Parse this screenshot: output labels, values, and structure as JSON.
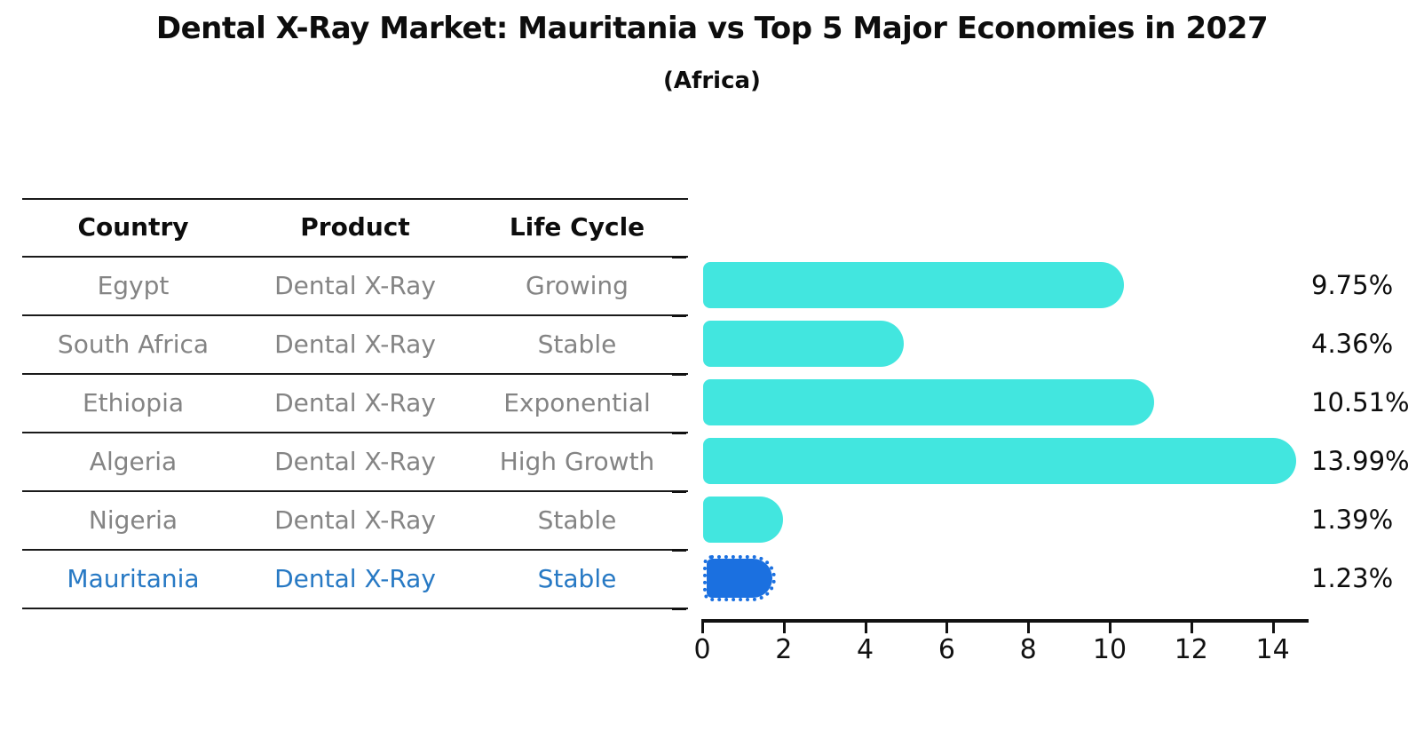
{
  "title": "Dental X-Ray Market: Mauritania vs Top 5 Major Economies in 2027",
  "subtitle": "(Africa)",
  "table": {
    "headers": [
      "Country",
      "Product",
      "Life Cycle"
    ],
    "rows": [
      {
        "country": "Egypt",
        "product": "Dental X-Ray",
        "life_cycle": "Growing",
        "highlight": false
      },
      {
        "country": "South Africa",
        "product": "Dental X-Ray",
        "life_cycle": "Stable",
        "highlight": false
      },
      {
        "country": "Ethiopia",
        "product": "Dental X-Ray",
        "life_cycle": "Exponential",
        "highlight": false
      },
      {
        "country": "Algeria",
        "product": "Dental X-Ray",
        "life_cycle": "High Growth",
        "highlight": false
      },
      {
        "country": "Nigeria",
        "product": "Dental X-Ray",
        "life_cycle": "Stable",
        "highlight": false
      },
      {
        "country": "Mauritania",
        "product": "Dental X-Ray",
        "life_cycle": "Stable",
        "highlight": true
      }
    ]
  },
  "chart_data": {
    "type": "bar",
    "orientation": "horizontal",
    "categories": [
      "Egypt",
      "South Africa",
      "Ethiopia",
      "Algeria",
      "Nigeria",
      "Mauritania"
    ],
    "values": [
      9.75,
      4.36,
      10.51,
      13.99,
      1.39,
      1.23
    ],
    "value_labels": [
      "9.75%",
      "4.36%",
      "10.51%",
      "13.99%",
      "1.39%",
      "1.23%"
    ],
    "highlight_index": 5,
    "x_ticks": [
      0,
      2,
      4,
      6,
      8,
      10,
      12,
      14
    ],
    "xlim": [
      0,
      14.9
    ],
    "grid": false,
    "legend": false,
    "colors": {
      "bar_default": "#42e6df",
      "bar_highlight": "#1b70e0",
      "highlight_text": "#2779c4"
    }
  }
}
